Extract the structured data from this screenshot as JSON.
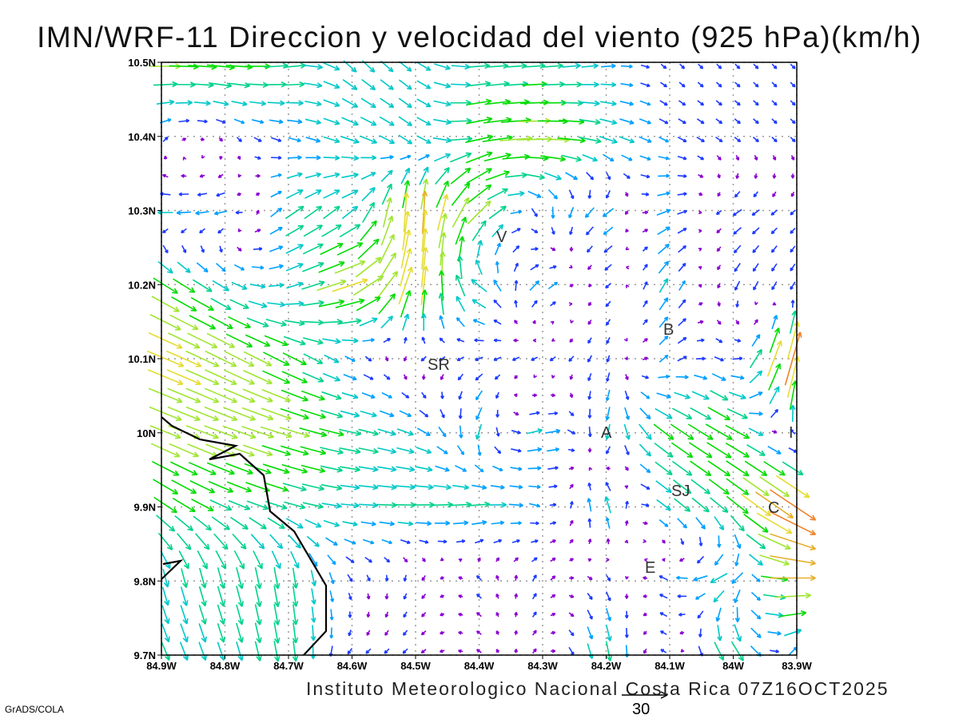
{
  "title": "IMN/WRF-11 Direccion y velocidad del viento (925 hPa)(km/h)",
  "footer": "Instituto Meteorologico Nacional Costa Rica 07Z16OCT2025",
  "credit": "GrADS/COLA",
  "reference_vector": {
    "label": "30",
    "speed_kmh": 30
  },
  "places": {
    "V": "V",
    "SR": "SR",
    "B": "B",
    "A": "A",
    "I": "I",
    "SJ": "SJ",
    "C": "C",
    "E": "E"
  },
  "chart_data": {
    "type": "vector-field",
    "title": "IMN/WRF-11 Direccion y velocidad del viento (925 hPa)(km/h)",
    "units": "km/h",
    "xlim": [
      -84.9,
      -83.9
    ],
    "ylim": [
      9.7,
      10.5
    ],
    "x_tick_labels": [
      "84.9W",
      "84.8W",
      "84.7W",
      "84.6W",
      "84.5W",
      "84.4W",
      "84.3W",
      "84.2W",
      "84.1W",
      "84W",
      "83.9W"
    ],
    "y_tick_labels": [
      "10.5N",
      "10.4N",
      "10.3N",
      "10.2N",
      "10.1N",
      "10N",
      "9.9N",
      "9.8N",
      "9.7N"
    ],
    "grid": true,
    "node_lons": [
      -84.9,
      -84.8,
      -84.7,
      -84.6,
      -84.5,
      -84.4,
      -84.3,
      -84.2,
      -84.1,
      -84.0,
      -83.9
    ],
    "node_lats": [
      10.5,
      10.4,
      10.3,
      10.2,
      10.1,
      10.0,
      9.9,
      9.8,
      9.7
    ],
    "u": [
      [
        20,
        18,
        15,
        8,
        8,
        14,
        14,
        10,
        3,
        3,
        3
      ],
      [
        3,
        2,
        8,
        12,
        8,
        18,
        24,
        12,
        6,
        4,
        3
      ],
      [
        -10,
        -8,
        12,
        10,
        0,
        15,
        2,
        -8,
        10,
        -6,
        -3
      ],
      [
        16,
        10,
        10,
        24,
        5,
        -10,
        8,
        -4,
        6,
        -3,
        -3
      ],
      [
        24,
        20,
        16,
        6,
        -3,
        -5,
        -4,
        -2,
        6,
        6,
        10
      ],
      [
        20,
        22,
        20,
        14,
        10,
        -3,
        12,
        -3,
        14,
        18,
        -3
      ],
      [
        15,
        14,
        14,
        12,
        14,
        14,
        6,
        -4,
        10,
        12,
        30
      ],
      [
        3,
        4,
        2,
        3,
        -2,
        -3,
        3,
        3,
        -6,
        -12,
        30
      ],
      [
        5,
        4,
        2,
        -3,
        -3,
        -3,
        3,
        3,
        -4,
        8,
        5
      ]
    ],
    "v": [
      [
        0,
        -2,
        2,
        -8,
        -6,
        1,
        1,
        1,
        -3,
        -3,
        -3
      ],
      [
        3,
        -3,
        -2,
        -4,
        -6,
        4,
        0,
        -4,
        -3,
        -3,
        -3
      ],
      [
        0,
        -2,
        8,
        8,
        30,
        15,
        -8,
        -6,
        4,
        -4,
        -3
      ],
      [
        -10,
        -6,
        3,
        8,
        28,
        8,
        6,
        -4,
        10,
        -6,
        -5
      ],
      [
        -10,
        -10,
        -8,
        -3,
        -3,
        -2,
        -2,
        -5,
        5,
        -4,
        35
      ],
      [
        -8,
        -8,
        -6,
        -3,
        -4,
        -10,
        4,
        -10,
        -10,
        -10,
        3
      ],
      [
        -10,
        -6,
        -4,
        -1,
        0,
        1,
        -2,
        12,
        -8,
        -10,
        -20
      ],
      [
        -12,
        -14,
        -14,
        -4,
        -4,
        3,
        4,
        -4,
        3,
        -8,
        0
      ],
      [
        -12,
        -12,
        -14,
        -3,
        -3,
        2,
        3,
        -14,
        3,
        -15,
        5
      ]
    ],
    "color_levels_kmh": [
      4,
      7,
      10,
      13,
      16,
      20,
      24,
      28,
      32,
      38,
      45
    ],
    "colors": [
      "#8a00d4",
      "#1e3cff",
      "#00a0ff",
      "#00c8c8",
      "#00d28c",
      "#00dc00",
      "#a0e632",
      "#e6dc32",
      "#e6af2d",
      "#f08228",
      "#fa3c3c",
      "#f00082"
    ]
  }
}
